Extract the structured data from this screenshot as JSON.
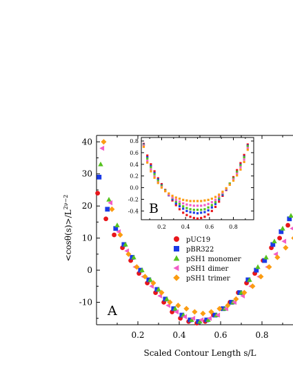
{
  "chart_data": [
    {
      "type": "scatter",
      "panel": "A",
      "xlabel": "Scaled Contour Length s/L",
      "ylabel": "<cosθ(s)>/L",
      "ylabel_exponent": "2ν−2",
      "xlim": [
        0.0,
        0.95
      ],
      "ylim": [
        -17,
        42
      ],
      "xticks": [
        "0.2",
        "0.4",
        "0.6",
        "0.8"
      ],
      "yticks": [
        "-10",
        "0",
        "10",
        "20",
        "30",
        "40"
      ],
      "legend_position": "center",
      "series": [
        {
          "name": "pUC19",
          "color": "#e8161b",
          "marker": "circle",
          "x": [
            0.02,
            0.06,
            0.1,
            0.14,
            0.18,
            0.22,
            0.26,
            0.3,
            0.34,
            0.38,
            0.42,
            0.46,
            0.5,
            0.54,
            0.58,
            0.62,
            0.66,
            0.7,
            0.74,
            0.78,
            0.82,
            0.86,
            0.9,
            0.94
          ],
          "y": [
            24,
            16,
            11,
            7,
            3,
            -1,
            -4,
            -7,
            -10,
            -13,
            -15,
            -16,
            -16.5,
            -16,
            -14,
            -12,
            -10,
            -7,
            -4,
            -1,
            3,
            7,
            10,
            14
          ]
        },
        {
          "name": "pBR322",
          "color": "#1a3ae6",
          "marker": "square",
          "x": [
            0.02,
            0.06,
            0.1,
            0.14,
            0.18,
            0.22,
            0.26,
            0.3,
            0.34,
            0.38,
            0.42,
            0.46,
            0.5,
            0.54,
            0.58,
            0.62,
            0.66,
            0.7,
            0.74,
            0.78,
            0.82,
            0.86,
            0.9,
            0.94
          ],
          "y": [
            29,
            19,
            13,
            8,
            4,
            0,
            -3,
            -6,
            -9,
            -12,
            -14,
            -15.5,
            -16,
            -15.5,
            -14,
            -12,
            -10,
            -7,
            -3,
            0,
            3,
            8,
            12,
            16
          ]
        },
        {
          "name": "pSH1 monomer",
          "color": "#55c21e",
          "marker": "triangle",
          "x": [
            0.02,
            0.06,
            0.1,
            0.14,
            0.18,
            0.22,
            0.26,
            0.3,
            0.34,
            0.38,
            0.42,
            0.46,
            0.5,
            0.54,
            0.58,
            0.62,
            0.66,
            0.7,
            0.74,
            0.78,
            0.82,
            0.86,
            0.9,
            0.94
          ],
          "y": [
            33,
            22,
            14,
            8,
            4,
            0,
            -3,
            -6,
            -9,
            -12,
            -14,
            -15.5,
            -16,
            -15.5,
            -14,
            -12,
            -10,
            -7,
            -3,
            1,
            4,
            9,
            13,
            17
          ]
        },
        {
          "name": "pSH1 dimer",
          "color": "#f25dc7",
          "marker": "triangle-left",
          "x": [
            0.02,
            0.06,
            0.1,
            0.14,
            0.18,
            0.22,
            0.26,
            0.3,
            0.34,
            0.38,
            0.42,
            0.46,
            0.5,
            0.54,
            0.58,
            0.62,
            0.66,
            0.7,
            0.74,
            0.78,
            0.82,
            0.86,
            0.9,
            0.94
          ],
          "y": [
            38,
            21,
            12,
            6,
            1,
            -2,
            -5,
            -8,
            -11,
            -13,
            -14.5,
            -15,
            -15.5,
            -15,
            -14,
            -12,
            -10,
            -8,
            -5,
            -2,
            1,
            5,
            9,
            13
          ]
        },
        {
          "name": "pSH1 trimer",
          "color": "#fb9c12",
          "marker": "diamond",
          "x": [
            0.02,
            0.06,
            0.1,
            0.14,
            0.18,
            0.22,
            0.26,
            0.3,
            0.34,
            0.38,
            0.42,
            0.46,
            0.5,
            0.54,
            0.58,
            0.62,
            0.66,
            0.7,
            0.74,
            0.78,
            0.82,
            0.86,
            0.9,
            0.94
          ],
          "y": [
            40,
            19,
            11,
            5,
            1,
            -2,
            -4,
            -7,
            -10,
            -11,
            -12,
            -13,
            -13.5,
            -13,
            -12,
            -11,
            -9,
            -7,
            -5,
            -2,
            1,
            4,
            7,
            10
          ]
        }
      ]
    },
    {
      "type": "scatter",
      "panel": "B",
      "xlim": [
        0.03,
        0.97
      ],
      "ylim": [
        -0.55,
        0.86
      ],
      "xticks": [
        "0.2",
        "0.4",
        "0.6",
        "0.8"
      ],
      "yticks": [
        "-0.4",
        "-0.2",
        "0.0",
        "0.2",
        "0.4",
        "0.6",
        "0.8"
      ],
      "series": [
        {
          "name": "pUC19",
          "color": "#e8161b",
          "x": [
            0.05,
            0.08,
            0.11,
            0.14,
            0.17,
            0.2,
            0.23,
            0.26,
            0.29,
            0.32,
            0.35,
            0.38,
            0.41,
            0.44,
            0.47,
            0.5,
            0.53,
            0.56,
            0.59,
            0.62,
            0.65,
            0.68,
            0.71,
            0.74,
            0.77,
            0.8,
            0.83,
            0.86,
            0.89,
            0.92
          ],
          "y": [
            0.75,
            0.55,
            0.4,
            0.28,
            0.16,
            0.06,
            -0.04,
            -0.13,
            -0.22,
            -0.3,
            -0.37,
            -0.43,
            -0.47,
            -0.5,
            -0.52,
            -0.53,
            -0.52,
            -0.5,
            -0.46,
            -0.4,
            -0.33,
            -0.24,
            -0.14,
            -0.04,
            0.07,
            0.18,
            0.3,
            0.42,
            0.56,
            0.74
          ]
        },
        {
          "name": "pBR322",
          "color": "#1a3ae6",
          "x": [
            0.05,
            0.08,
            0.11,
            0.14,
            0.17,
            0.2,
            0.23,
            0.26,
            0.29,
            0.32,
            0.35,
            0.38,
            0.41,
            0.44,
            0.47,
            0.5,
            0.53,
            0.56,
            0.59,
            0.62,
            0.65,
            0.68,
            0.71,
            0.74,
            0.77,
            0.8,
            0.83,
            0.86,
            0.89,
            0.92
          ],
          "y": [
            0.74,
            0.52,
            0.37,
            0.25,
            0.14,
            0.04,
            -0.05,
            -0.13,
            -0.2,
            -0.27,
            -0.32,
            -0.36,
            -0.4,
            -0.42,
            -0.43,
            -0.44,
            -0.43,
            -0.42,
            -0.39,
            -0.34,
            -0.28,
            -0.2,
            -0.12,
            -0.03,
            0.06,
            0.16,
            0.27,
            0.39,
            0.53,
            0.72
          ]
        },
        {
          "name": "pSH1 monomer",
          "color": "#55c21e",
          "x": [
            0.05,
            0.08,
            0.11,
            0.14,
            0.17,
            0.2,
            0.23,
            0.26,
            0.29,
            0.32,
            0.35,
            0.38,
            0.41,
            0.44,
            0.47,
            0.5,
            0.53,
            0.56,
            0.59,
            0.62,
            0.65,
            0.68,
            0.71,
            0.74,
            0.77,
            0.8,
            0.83,
            0.86,
            0.89,
            0.92
          ],
          "y": [
            0.73,
            0.5,
            0.35,
            0.23,
            0.12,
            0.03,
            -0.05,
            -0.12,
            -0.18,
            -0.24,
            -0.28,
            -0.32,
            -0.35,
            -0.37,
            -0.38,
            -0.38,
            -0.38,
            -0.37,
            -0.34,
            -0.3,
            -0.25,
            -0.18,
            -0.1,
            -0.02,
            0.07,
            0.16,
            0.27,
            0.38,
            0.52,
            0.71
          ]
        },
        {
          "name": "pSH1 dimer",
          "color": "#f25dc7",
          "x": [
            0.05,
            0.08,
            0.11,
            0.14,
            0.17,
            0.2,
            0.23,
            0.26,
            0.29,
            0.32,
            0.35,
            0.38,
            0.41,
            0.44,
            0.47,
            0.5,
            0.53,
            0.56,
            0.59,
            0.62,
            0.65,
            0.68,
            0.71,
            0.74,
            0.77,
            0.8,
            0.83,
            0.86,
            0.89,
            0.92
          ],
          "y": [
            0.72,
            0.46,
            0.31,
            0.19,
            0.09,
            0.01,
            -0.06,
            -0.12,
            -0.17,
            -0.21,
            -0.24,
            -0.27,
            -0.29,
            -0.3,
            -0.31,
            -0.31,
            -0.31,
            -0.3,
            -0.28,
            -0.25,
            -0.21,
            -0.15,
            -0.09,
            -0.02,
            0.05,
            0.14,
            0.24,
            0.35,
            0.48,
            0.68
          ]
        },
        {
          "name": "pSH1 trimer",
          "color": "#fb9c12",
          "x": [
            0.05,
            0.08,
            0.11,
            0.14,
            0.17,
            0.2,
            0.23,
            0.26,
            0.29,
            0.32,
            0.35,
            0.38,
            0.41,
            0.44,
            0.47,
            0.5,
            0.53,
            0.56,
            0.59,
            0.62,
            0.65,
            0.68,
            0.71,
            0.74,
            0.77,
            0.8,
            0.83,
            0.86,
            0.89,
            0.92
          ],
          "y": [
            0.7,
            0.43,
            0.28,
            0.17,
            0.08,
            0.0,
            -0.06,
            -0.1,
            -0.14,
            -0.17,
            -0.19,
            -0.21,
            -0.22,
            -0.23,
            -0.23,
            -0.23,
            -0.23,
            -0.22,
            -0.21,
            -0.19,
            -0.16,
            -0.12,
            -0.07,
            -0.01,
            0.05,
            0.12,
            0.21,
            0.31,
            0.44,
            0.65
          ]
        }
      ]
    }
  ]
}
